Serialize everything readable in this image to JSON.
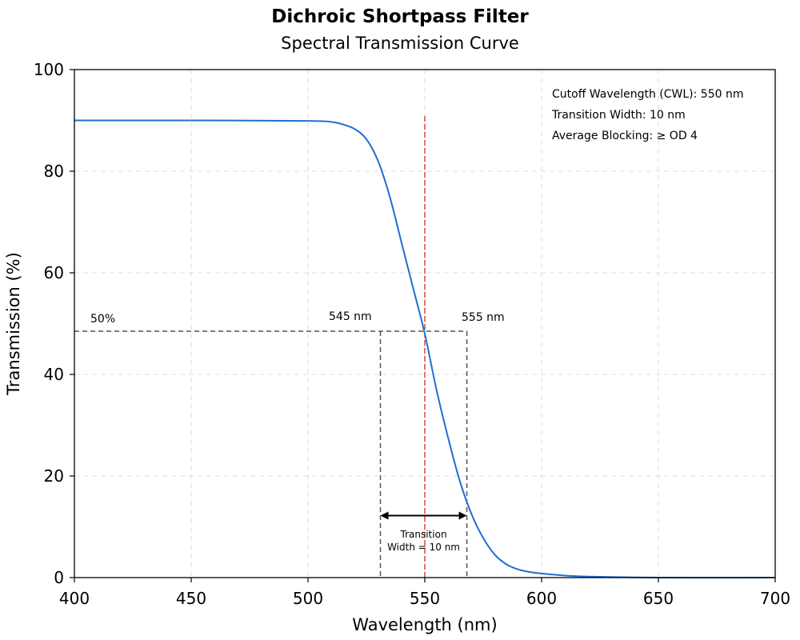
{
  "chart_data": {
    "type": "line",
    "title": "Dichroic Shortpass Filter",
    "subtitle": "Spectral Transmission Curve",
    "xlabel": "Wavelength (nm)",
    "ylabel": "Transmission (%)",
    "xlim": [
      400,
      700
    ],
    "ylim": [
      0,
      100
    ],
    "xticks": [
      400,
      450,
      500,
      550,
      600,
      650,
      700
    ],
    "yticks": [
      0,
      20,
      40,
      60,
      80,
      100
    ],
    "grid": true,
    "series": [
      {
        "color": "#1f6fd1",
        "x": [
          400,
          450,
          500,
          510,
          515,
          520,
          525,
          530,
          535,
          540,
          545,
          550,
          555,
          560,
          565,
          570,
          575,
          580,
          585,
          590,
          595,
          600,
          610,
          620,
          650,
          700
        ],
        "values": [
          90.0,
          90.0,
          89.9,
          89.7,
          89.2,
          88.3,
          86.3,
          82.0,
          75.0,
          66.0,
          57.0,
          48.0,
          37.0,
          27.5,
          19.0,
          12.5,
          7.8,
          4.5,
          2.6,
          1.6,
          1.1,
          0.8,
          0.4,
          0.2,
          0.0,
          0.0
        ]
      }
    ],
    "annotations": {
      "cutoff_wavelength": 550,
      "cutoff_line_color": "#d62728",
      "half_level": 48.5,
      "half_label": "50%",
      "box_x_left": 531,
      "box_x_right": 568,
      "left_label": "545 nm",
      "right_label": "555 nm",
      "transition_line1": "Transition",
      "transition_line2": "Width = 10 nm",
      "info": [
        "Cutoff Wavelength (CWL): 550 nm",
        "Transition Width: 10 nm",
        "Average Blocking: ≥ OD 4"
      ]
    }
  }
}
